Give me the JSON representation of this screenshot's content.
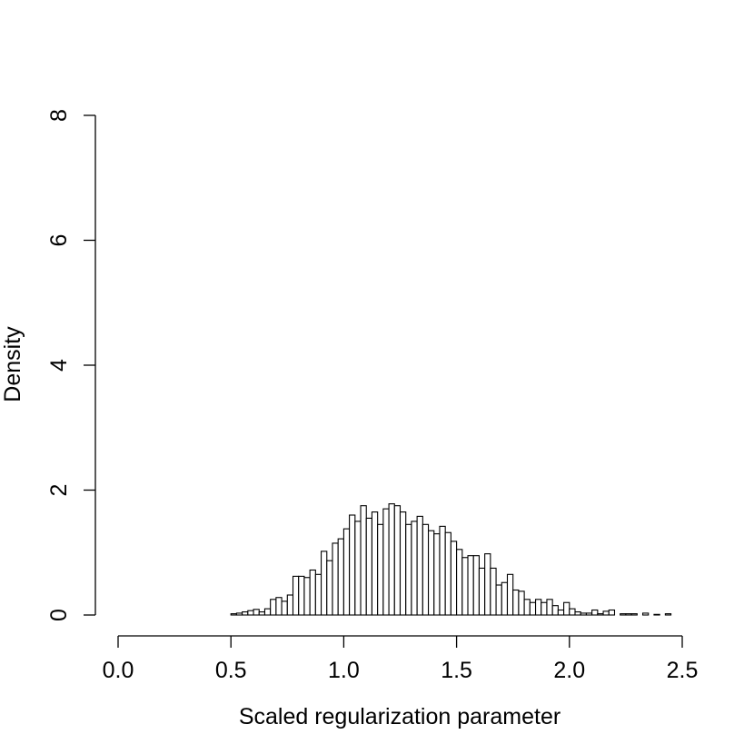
{
  "chart_data": {
    "type": "histogram",
    "title": "",
    "xlabel": "Scaled regularization parameter",
    "ylabel": "Density",
    "xlim": [
      0,
      2.5
    ],
    "ylim": [
      0,
      8
    ],
    "x_ticks": [
      0.0,
      0.5,
      1.0,
      1.5,
      2.0,
      2.5
    ],
    "x_tick_labels": [
      "0.0",
      "0.5",
      "1.0",
      "1.5",
      "2.0",
      "2.5"
    ],
    "y_ticks": [
      0,
      2,
      4,
      6,
      8
    ],
    "y_tick_labels": [
      "0",
      "2",
      "4",
      "6",
      "8"
    ],
    "bin_width": 0.025,
    "bin_start": 0.0,
    "grid": false,
    "legend": "none",
    "density": [
      0,
      0,
      0,
      0,
      0,
      0,
      0,
      0,
      0,
      0,
      0,
      0,
      0,
      0,
      0,
      0,
      0,
      0,
      0,
      0,
      0.02,
      0.03,
      0.05,
      0.07,
      0.09,
      0.05,
      0.1,
      0.25,
      0.28,
      0.22,
      0.32,
      0.62,
      0.62,
      0.6,
      0.72,
      0.65,
      1.02,
      0.87,
      1.15,
      1.22,
      1.38,
      1.6,
      1.5,
      1.75,
      1.55,
      1.65,
      1.45,
      1.7,
      1.78,
      1.75,
      1.65,
      1.45,
      1.5,
      1.58,
      1.45,
      1.35,
      1.3,
      1.42,
      1.32,
      1.18,
      1.05,
      0.92,
      0.95,
      0.95,
      0.75,
      0.98,
      0.75,
      0.48,
      0.52,
      0.65,
      0.4,
      0.38,
      0.25,
      0.2,
      0.25,
      0.2,
      0.25,
      0.15,
      0.08,
      0.2,
      0.1,
      0.05,
      0.03,
      0.03,
      0.08,
      0.02,
      0.06,
      0.08,
      0,
      0.02,
      0.02,
      0.02,
      0,
      0.03,
      0,
      0.01,
      0,
      0.02,
      0,
      0,
      0
    ]
  }
}
